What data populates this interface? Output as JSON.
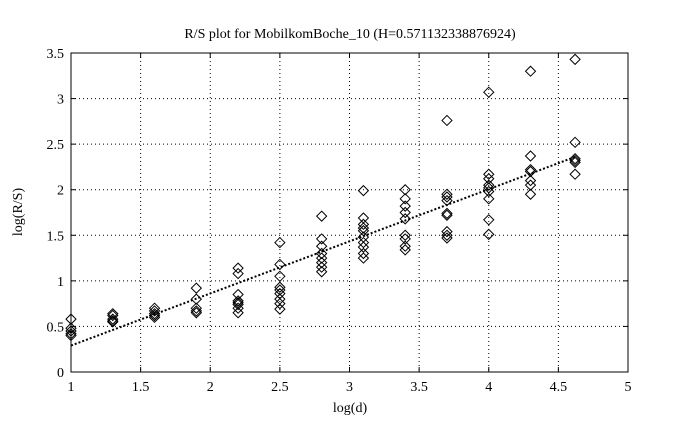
{
  "chart_data": {
    "type": "scatter",
    "title": "R/S plot for MobilkomBoche_10 (H=0.571132338876924)",
    "xlabel": "log(d)",
    "ylabel": "log(R/S)",
    "xlim": [
      1,
      5
    ],
    "ylim": [
      0,
      3.5
    ],
    "xticks": [
      "1",
      "1.5",
      "2",
      "2.5",
      "3",
      "3.5",
      "4",
      "4.5",
      "5"
    ],
    "yticks": [
      "0",
      "0.5",
      "1",
      "1.5",
      "2",
      "2.5",
      "3",
      "3.5"
    ],
    "grid": true,
    "marker": "diamond",
    "fit_line": {
      "x": [
        1.0,
        4.62
      ],
      "y": [
        0.29,
        2.36
      ],
      "style": "dotted"
    },
    "points": [
      {
        "x": 1.0,
        "y": 0.58
      },
      {
        "x": 1.0,
        "y": 0.48
      },
      {
        "x": 1.0,
        "y": 0.45
      },
      {
        "x": 1.0,
        "y": 0.42
      },
      {
        "x": 1.0,
        "y": 0.4
      },
      {
        "x": 1.3,
        "y": 0.64
      },
      {
        "x": 1.3,
        "y": 0.62
      },
      {
        "x": 1.3,
        "y": 0.58
      },
      {
        "x": 1.3,
        "y": 0.56
      },
      {
        "x": 1.3,
        "y": 0.55
      },
      {
        "x": 1.6,
        "y": 0.7
      },
      {
        "x": 1.6,
        "y": 0.67
      },
      {
        "x": 1.6,
        "y": 0.64
      },
      {
        "x": 1.6,
        "y": 0.62
      },
      {
        "x": 1.6,
        "y": 0.6
      },
      {
        "x": 1.9,
        "y": 0.92
      },
      {
        "x": 1.9,
        "y": 0.8
      },
      {
        "x": 1.9,
        "y": 0.7
      },
      {
        "x": 1.9,
        "y": 0.67
      },
      {
        "x": 1.9,
        "y": 0.65
      },
      {
        "x": 2.2,
        "y": 1.14
      },
      {
        "x": 2.2,
        "y": 1.08
      },
      {
        "x": 2.2,
        "y": 0.85
      },
      {
        "x": 2.2,
        "y": 0.78
      },
      {
        "x": 2.2,
        "y": 0.76
      },
      {
        "x": 2.2,
        "y": 0.74
      },
      {
        "x": 2.2,
        "y": 0.7
      },
      {
        "x": 2.2,
        "y": 0.65
      },
      {
        "x": 2.5,
        "y": 1.42
      },
      {
        "x": 2.5,
        "y": 1.18
      },
      {
        "x": 2.5,
        "y": 1.05
      },
      {
        "x": 2.5,
        "y": 0.93
      },
      {
        "x": 2.5,
        "y": 0.9
      },
      {
        "x": 2.5,
        "y": 0.86
      },
      {
        "x": 2.5,
        "y": 0.8
      },
      {
        "x": 2.5,
        "y": 0.75
      },
      {
        "x": 2.5,
        "y": 0.69
      },
      {
        "x": 2.8,
        "y": 1.71
      },
      {
        "x": 2.8,
        "y": 1.46
      },
      {
        "x": 2.8,
        "y": 1.38
      },
      {
        "x": 2.8,
        "y": 1.3
      },
      {
        "x": 2.8,
        "y": 1.25
      },
      {
        "x": 2.8,
        "y": 1.2
      },
      {
        "x": 2.8,
        "y": 1.15
      },
      {
        "x": 2.8,
        "y": 1.1
      },
      {
        "x": 3.1,
        "y": 1.99
      },
      {
        "x": 3.1,
        "y": 1.69
      },
      {
        "x": 3.1,
        "y": 1.62
      },
      {
        "x": 3.1,
        "y": 1.58
      },
      {
        "x": 3.1,
        "y": 1.55
      },
      {
        "x": 3.1,
        "y": 1.48
      },
      {
        "x": 3.1,
        "y": 1.42
      },
      {
        "x": 3.1,
        "y": 1.37
      },
      {
        "x": 3.1,
        "y": 1.3
      },
      {
        "x": 3.1,
        "y": 1.25
      },
      {
        "x": 3.4,
        "y": 2.0
      },
      {
        "x": 3.4,
        "y": 1.9
      },
      {
        "x": 3.4,
        "y": 1.82
      },
      {
        "x": 3.4,
        "y": 1.75
      },
      {
        "x": 3.4,
        "y": 1.68
      },
      {
        "x": 3.4,
        "y": 1.5
      },
      {
        "x": 3.4,
        "y": 1.46
      },
      {
        "x": 3.4,
        "y": 1.38
      },
      {
        "x": 3.4,
        "y": 1.34
      },
      {
        "x": 3.7,
        "y": 2.76
      },
      {
        "x": 3.7,
        "y": 1.95
      },
      {
        "x": 3.7,
        "y": 1.92
      },
      {
        "x": 3.7,
        "y": 1.88
      },
      {
        "x": 3.7,
        "y": 1.74
      },
      {
        "x": 3.7,
        "y": 1.72
      },
      {
        "x": 3.7,
        "y": 1.54
      },
      {
        "x": 3.7,
        "y": 1.5
      },
      {
        "x": 3.7,
        "y": 1.47
      },
      {
        "x": 4.0,
        "y": 3.07
      },
      {
        "x": 4.0,
        "y": 2.17
      },
      {
        "x": 4.0,
        "y": 2.12
      },
      {
        "x": 4.0,
        "y": 2.05
      },
      {
        "x": 4.0,
        "y": 2.02
      },
      {
        "x": 4.0,
        "y": 1.98
      },
      {
        "x": 4.0,
        "y": 1.9
      },
      {
        "x": 4.0,
        "y": 1.67
      },
      {
        "x": 4.0,
        "y": 1.51
      },
      {
        "x": 4.3,
        "y": 3.3
      },
      {
        "x": 4.3,
        "y": 2.37
      },
      {
        "x": 4.3,
        "y": 2.22
      },
      {
        "x": 4.3,
        "y": 2.2
      },
      {
        "x": 4.3,
        "y": 2.1
      },
      {
        "x": 4.3,
        "y": 2.05
      },
      {
        "x": 4.3,
        "y": 1.95
      },
      {
        "x": 4.62,
        "y": 3.43
      },
      {
        "x": 4.62,
        "y": 2.52
      },
      {
        "x": 4.62,
        "y": 2.34
      },
      {
        "x": 4.62,
        "y": 2.32
      },
      {
        "x": 4.62,
        "y": 2.3
      },
      {
        "x": 4.62,
        "y": 2.17
      }
    ]
  }
}
